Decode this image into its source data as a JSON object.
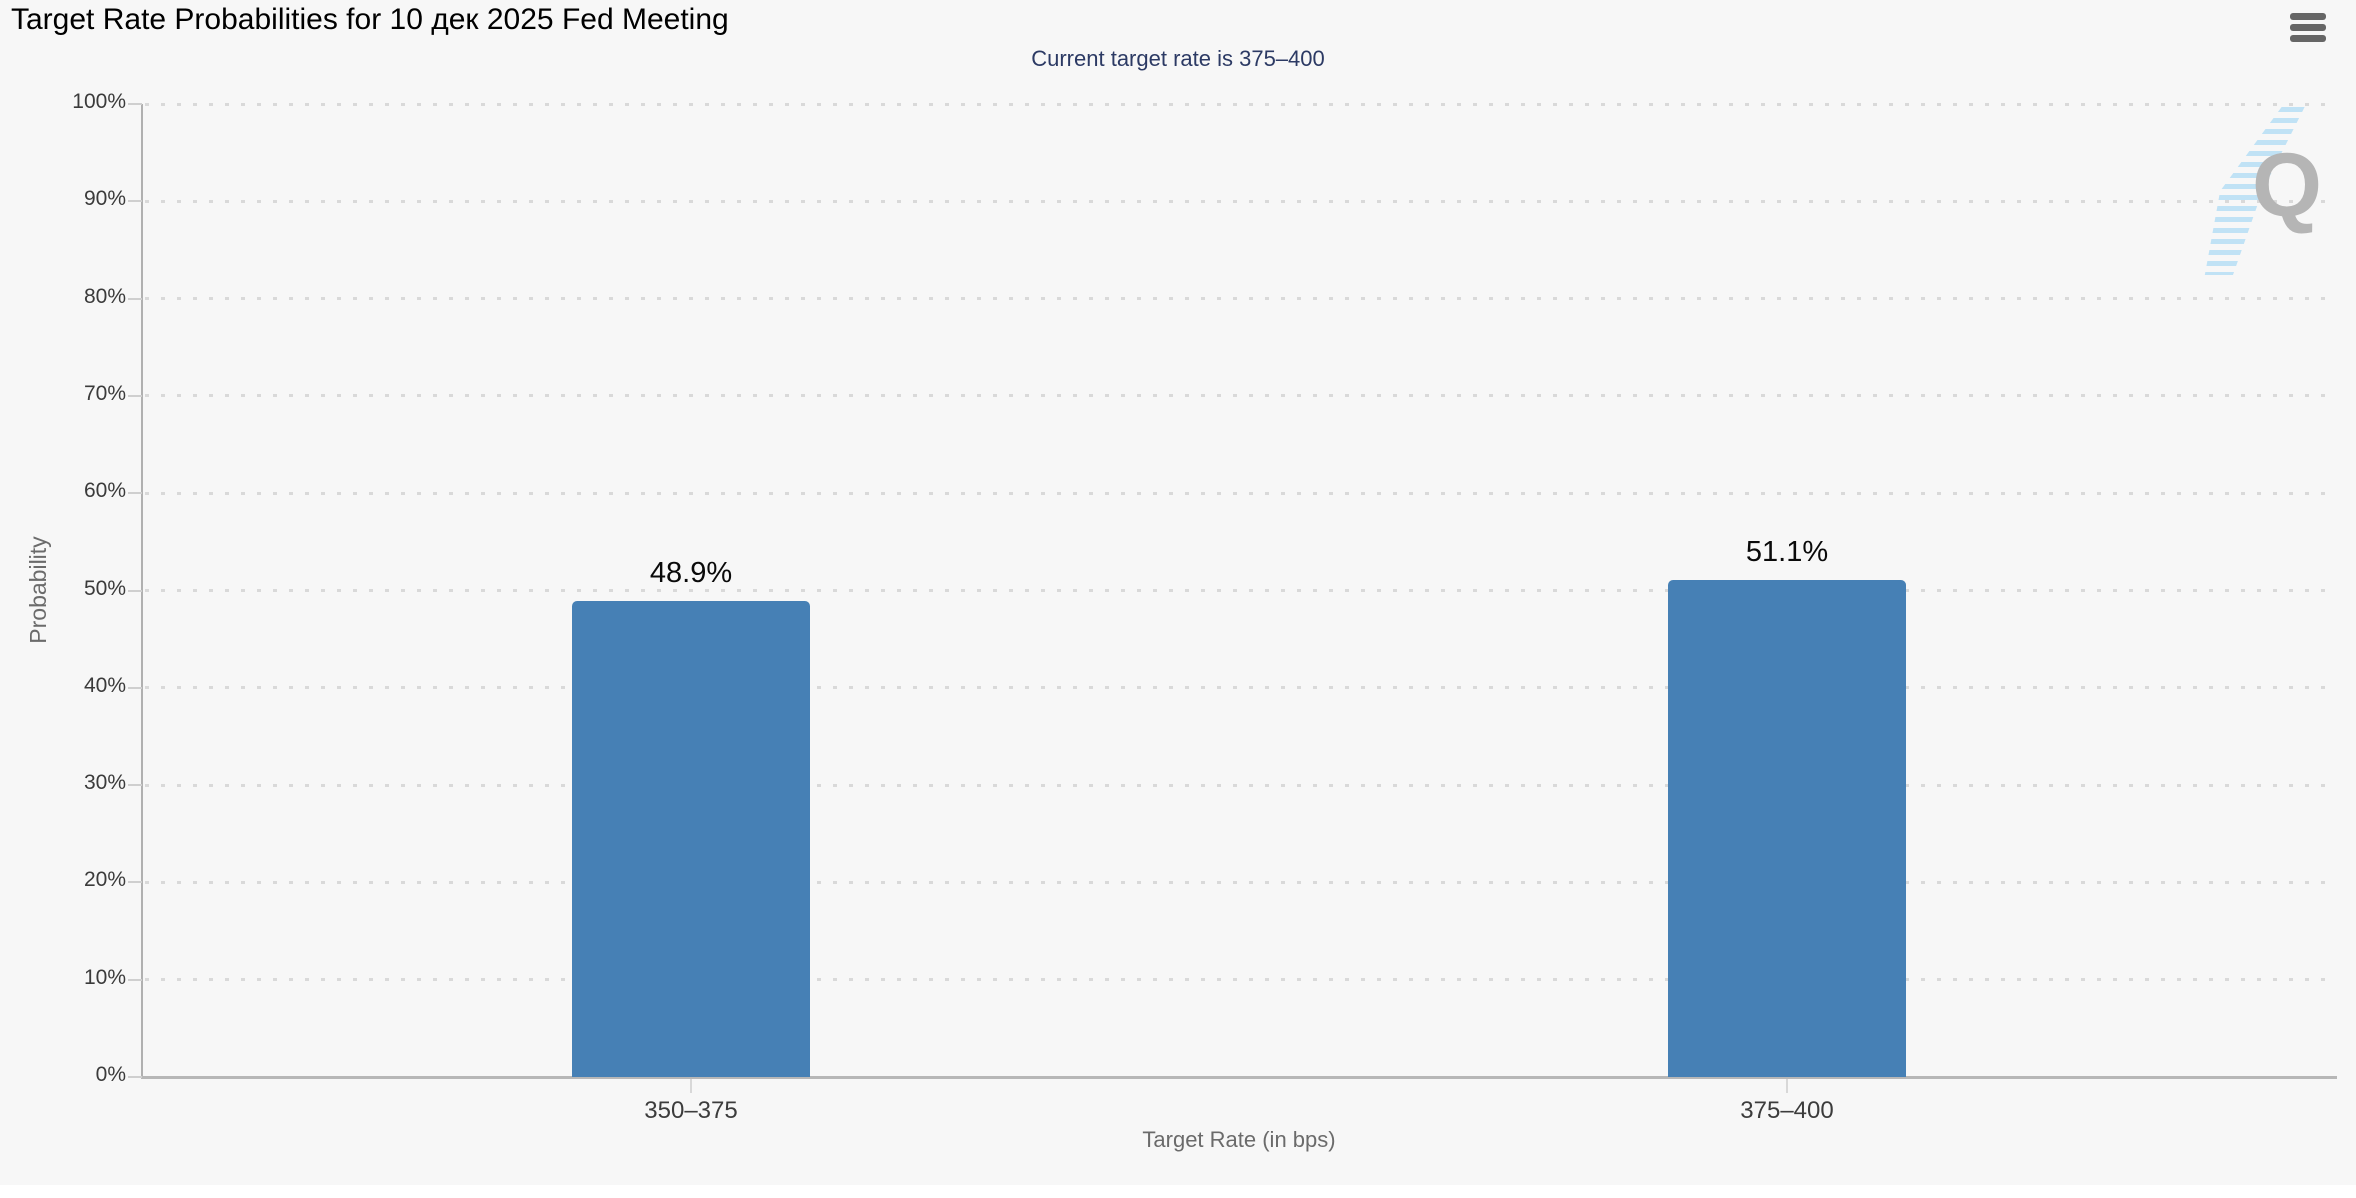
{
  "header": {
    "title": "Target Rate Probabilities for 10 дек 2025 Fed Meeting",
    "menu_icon": "hamburger-menu-icon"
  },
  "chart_data": {
    "type": "bar",
    "title": "Target Rate Probabilities for 10 дек 2025 Fed Meeting",
    "subtitle": "Current target rate is 375–400",
    "categories": [
      "350–375",
      "375–400"
    ],
    "series": [
      {
        "name": "Probability",
        "values": [
          48.9,
          51.1
        ]
      }
    ],
    "data_labels": [
      "48.9%",
      "51.1%"
    ],
    "xlabel": "Target Rate (in bps)",
    "ylabel": "Probability",
    "ylim": [
      0,
      100
    ],
    "ytick_interval": 10,
    "ytick_labels": [
      "0%",
      "10%",
      "20%",
      "30%",
      "40%",
      "50%",
      "60%",
      "70%",
      "80%",
      "90%",
      "100%"
    ],
    "grid": "dotted-horizontal",
    "legend": "none",
    "watermark_letter": "Q"
  },
  "colors": {
    "background": "#f7f7f7",
    "footer_background": "#ffffff",
    "bar_fill": "#4680b5",
    "subtitle_text": "#2c3a64",
    "title_text": "#000000",
    "axis_text": "#6b6b6b",
    "tick_text": "#3b3b3b",
    "gridline": "#d9d9d9",
    "watermark_gray": "#b5b5b5",
    "watermark_blue": "#b6def5",
    "menu_icon": "#666666"
  }
}
